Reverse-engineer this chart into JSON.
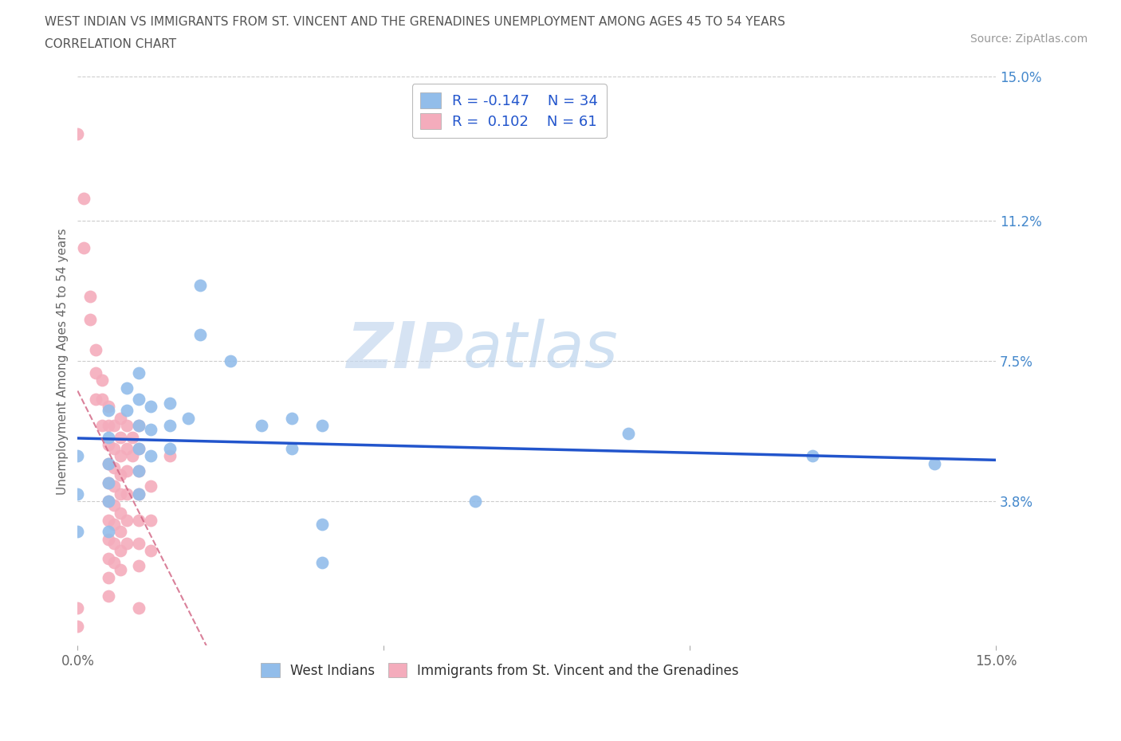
{
  "title_line1": "WEST INDIAN VS IMMIGRANTS FROM ST. VINCENT AND THE GRENADINES UNEMPLOYMENT AMONG AGES 45 TO 54 YEARS",
  "title_line2": "CORRELATION CHART",
  "source": "Source: ZipAtlas.com",
  "ylabel": "Unemployment Among Ages 45 to 54 years",
  "xlim": [
    0,
    0.15
  ],
  "ylim": [
    0,
    0.15
  ],
  "ytick_labels_right": [
    "15.0%",
    "11.2%",
    "7.5%",
    "3.8%"
  ],
  "ytick_positions_right": [
    0.15,
    0.112,
    0.075,
    0.038
  ],
  "color_blue": "#92BDEA",
  "color_pink": "#F4ACBC",
  "trendline_blue": "#2255CC",
  "trendline_pink": "#D06080",
  "watermark_zip": "ZIP",
  "watermark_atlas": "atlas",
  "blue_scatter": [
    [
      0.0,
      0.05
    ],
    [
      0.0,
      0.04
    ],
    [
      0.0,
      0.03
    ],
    [
      0.005,
      0.062
    ],
    [
      0.005,
      0.055
    ],
    [
      0.005,
      0.048
    ],
    [
      0.005,
      0.043
    ],
    [
      0.005,
      0.038
    ],
    [
      0.005,
      0.03
    ],
    [
      0.008,
      0.068
    ],
    [
      0.008,
      0.062
    ],
    [
      0.01,
      0.072
    ],
    [
      0.01,
      0.065
    ],
    [
      0.01,
      0.058
    ],
    [
      0.01,
      0.052
    ],
    [
      0.01,
      0.046
    ],
    [
      0.01,
      0.04
    ],
    [
      0.012,
      0.063
    ],
    [
      0.012,
      0.057
    ],
    [
      0.012,
      0.05
    ],
    [
      0.015,
      0.064
    ],
    [
      0.015,
      0.058
    ],
    [
      0.015,
      0.052
    ],
    [
      0.018,
      0.06
    ],
    [
      0.02,
      0.095
    ],
    [
      0.02,
      0.082
    ],
    [
      0.025,
      0.075
    ],
    [
      0.03,
      0.058
    ],
    [
      0.035,
      0.052
    ],
    [
      0.035,
      0.06
    ],
    [
      0.04,
      0.058
    ],
    [
      0.04,
      0.032
    ],
    [
      0.04,
      0.022
    ],
    [
      0.065,
      0.038
    ],
    [
      0.09,
      0.056
    ],
    [
      0.12,
      0.05
    ],
    [
      0.14,
      0.048
    ]
  ],
  "pink_scatter": [
    [
      0.0,
      0.135
    ],
    [
      0.001,
      0.118
    ],
    [
      0.001,
      0.105
    ],
    [
      0.002,
      0.092
    ],
    [
      0.002,
      0.086
    ],
    [
      0.003,
      0.078
    ],
    [
      0.003,
      0.072
    ],
    [
      0.003,
      0.065
    ],
    [
      0.004,
      0.07
    ],
    [
      0.004,
      0.065
    ],
    [
      0.004,
      0.058
    ],
    [
      0.005,
      0.063
    ],
    [
      0.005,
      0.058
    ],
    [
      0.005,
      0.053
    ],
    [
      0.005,
      0.048
    ],
    [
      0.005,
      0.043
    ],
    [
      0.005,
      0.038
    ],
    [
      0.005,
      0.033
    ],
    [
      0.005,
      0.028
    ],
    [
      0.005,
      0.023
    ],
    [
      0.005,
      0.018
    ],
    [
      0.005,
      0.013
    ],
    [
      0.006,
      0.058
    ],
    [
      0.006,
      0.052
    ],
    [
      0.006,
      0.047
    ],
    [
      0.006,
      0.042
    ],
    [
      0.006,
      0.037
    ],
    [
      0.006,
      0.032
    ],
    [
      0.006,
      0.027
    ],
    [
      0.006,
      0.022
    ],
    [
      0.007,
      0.06
    ],
    [
      0.007,
      0.055
    ],
    [
      0.007,
      0.05
    ],
    [
      0.007,
      0.045
    ],
    [
      0.007,
      0.04
    ],
    [
      0.007,
      0.035
    ],
    [
      0.007,
      0.03
    ],
    [
      0.007,
      0.025
    ],
    [
      0.007,
      0.02
    ],
    [
      0.008,
      0.058
    ],
    [
      0.008,
      0.052
    ],
    [
      0.008,
      0.046
    ],
    [
      0.008,
      0.04
    ],
    [
      0.008,
      0.033
    ],
    [
      0.008,
      0.027
    ],
    [
      0.009,
      0.055
    ],
    [
      0.009,
      0.05
    ],
    [
      0.01,
      0.058
    ],
    [
      0.01,
      0.052
    ],
    [
      0.01,
      0.046
    ],
    [
      0.01,
      0.04
    ],
    [
      0.01,
      0.033
    ],
    [
      0.01,
      0.027
    ],
    [
      0.01,
      0.021
    ],
    [
      0.01,
      0.01
    ],
    [
      0.012,
      0.042
    ],
    [
      0.012,
      0.033
    ],
    [
      0.012,
      0.025
    ],
    [
      0.015,
      0.05
    ],
    [
      0.0,
      0.01
    ],
    [
      0.0,
      0.005
    ]
  ]
}
